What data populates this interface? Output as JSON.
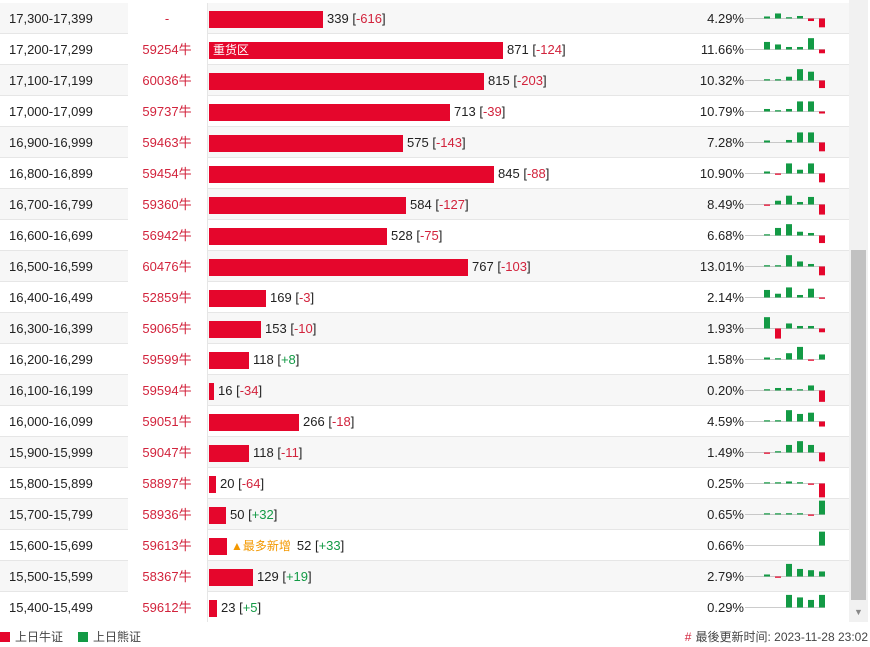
{
  "colors": {
    "bull": "#e5062c",
    "bear": "#139a45",
    "text_red": "#d2233c",
    "new_tag": "#f39800"
  },
  "rows": [
    {
      "range": "17,300-17,399",
      "bull": "-",
      "bar_value": 339,
      "change": "-616",
      "change_sign": "neg",
      "tag": "",
      "pct": "4.29%",
      "spark": [
        0.0,
        0.08,
        0.2,
        0.05,
        0.1,
        -0.1,
        -0.35
      ]
    },
    {
      "range": "17,200-17,299",
      "bull": "59254牛",
      "bar_value": 871,
      "bar_label": "重货区",
      "change": "-124",
      "change_sign": "neg",
      "tag": "",
      "pct": "11.66%",
      "spark": [
        0.0,
        0.3,
        0.2,
        0.1,
        0.1,
        0.45,
        -0.15
      ]
    },
    {
      "range": "17,100-17,199",
      "bull": "60036牛",
      "bar_value": 815,
      "change": "-203",
      "change_sign": "neg",
      "tag": "",
      "pct": "10.32%",
      "spark": [
        0.0,
        0.05,
        0.05,
        0.15,
        0.45,
        0.35,
        -0.3
      ]
    },
    {
      "range": "17,000-17,099",
      "bull": "59737牛",
      "bar_value": 713,
      "change": "-39",
      "change_sign": "neg",
      "tag": "",
      "pct": "10.79%",
      "spark": [
        0.0,
        0.1,
        0.05,
        0.1,
        0.4,
        0.4,
        -0.08
      ]
    },
    {
      "range": "16,900-16,999",
      "bull": "59463牛",
      "bar_value": 575,
      "change": "-143",
      "change_sign": "neg",
      "tag": "",
      "pct": "7.28%",
      "spark": [
        0.0,
        0.08,
        0.0,
        0.1,
        0.4,
        0.4,
        -0.35
      ]
    },
    {
      "range": "16,800-16,899",
      "bull": "59454牛",
      "bar_value": 845,
      "change": "-88",
      "change_sign": "neg",
      "tag": "",
      "pct": "10.90%",
      "spark": [
        0.0,
        0.08,
        -0.05,
        0.4,
        0.15,
        0.4,
        -0.35
      ]
    },
    {
      "range": "16,700-16,799",
      "bull": "59360牛",
      "bar_value": 584,
      "change": "-127",
      "change_sign": "neg",
      "tag": "",
      "pct": "8.49%",
      "spark": [
        0.0,
        -0.05,
        0.15,
        0.35,
        0.1,
        0.3,
        -0.4
      ]
    },
    {
      "range": "16,600-16,699",
      "bull": "56942牛",
      "bar_value": 528,
      "change": "-75",
      "change_sign": "neg",
      "tag": "",
      "pct": "6.68%",
      "spark": [
        0.0,
        0.03,
        0.3,
        0.45,
        0.15,
        0.1,
        -0.3
      ]
    },
    {
      "range": "16,500-16,599",
      "bull": "60476牛",
      "bar_value": 767,
      "change": "-103",
      "change_sign": "neg",
      "tag": "",
      "pct": "13.01%",
      "spark": [
        0.0,
        0.05,
        0.05,
        0.45,
        0.2,
        0.1,
        -0.35
      ]
    },
    {
      "range": "16,400-16,499",
      "bull": "52859牛",
      "bar_value": 169,
      "change": "-3",
      "change_sign": "neg",
      "tag": "",
      "pct": "2.14%",
      "spark": [
        0.0,
        0.3,
        0.15,
        0.4,
        0.1,
        0.35,
        -0.05
      ]
    },
    {
      "range": "16,300-16,399",
      "bull": "59065牛",
      "bar_value": 153,
      "change": "-10",
      "change_sign": "neg",
      "tag": "",
      "pct": "1.93%",
      "spark": [
        0.0,
        0.45,
        -0.4,
        0.2,
        0.1,
        0.1,
        -0.15
      ]
    },
    {
      "range": "16,200-16,299",
      "bull": "59599牛",
      "bar_value": 118,
      "change": "+8",
      "change_sign": "pos",
      "tag": "",
      "pct": "1.58%",
      "spark": [
        0.0,
        0.08,
        0.05,
        0.25,
        0.5,
        -0.05,
        0.2
      ]
    },
    {
      "range": "16,100-16,199",
      "bull": "59594牛",
      "bar_value": 16,
      "change": "-34",
      "change_sign": "neg",
      "tag": "",
      "pct": "0.20%",
      "spark": [
        0.0,
        0.05,
        0.1,
        0.1,
        0.05,
        0.2,
        -0.45
      ]
    },
    {
      "range": "16,000-16,099",
      "bull": "59051牛",
      "bar_value": 266,
      "change": "-18",
      "change_sign": "neg",
      "tag": "",
      "pct": "4.59%",
      "spark": [
        0.0,
        0.03,
        0.05,
        0.45,
        0.3,
        0.35,
        -0.2
      ]
    },
    {
      "range": "15,900-15,999",
      "bull": "59047牛",
      "bar_value": 118,
      "change": "-11",
      "change_sign": "neg",
      "tag": "",
      "pct": "1.49%",
      "spark": [
        0.0,
        -0.05,
        0.05,
        0.3,
        0.45,
        0.3,
        -0.35
      ]
    },
    {
      "range": "15,800-15,899",
      "bull": "58897牛",
      "bar_value": 20,
      "change": "-64",
      "change_sign": "neg",
      "tag": "",
      "pct": "0.25%",
      "spark": [
        0.0,
        0.02,
        0.02,
        0.08,
        0.05,
        -0.05,
        -0.55
      ]
    },
    {
      "range": "15,700-15,799",
      "bull": "58936牛",
      "bar_value": 50,
      "change": "+32",
      "change_sign": "pos",
      "tag": "",
      "pct": "0.65%",
      "spark": [
        0.0,
        0.02,
        0.02,
        0.05,
        0.05,
        -0.05,
        0.55
      ]
    },
    {
      "range": "15,600-15,699",
      "bull": "59613牛",
      "bar_value": 52,
      "change": "+33",
      "change_sign": "pos",
      "tag": "▲最多新增",
      "pct": "0.66%",
      "spark": [
        0.0,
        0.0,
        0.0,
        0.0,
        0.0,
        0.0,
        0.55
      ]
    },
    {
      "range": "15,500-15,599",
      "bull": "58367牛",
      "bar_value": 129,
      "change": "+19",
      "change_sign": "pos",
      "tag": "",
      "pct": "2.79%",
      "spark": [
        0.0,
        0.08,
        -0.05,
        0.5,
        0.3,
        0.25,
        0.2
      ]
    },
    {
      "range": "15,400-15,499",
      "bull": "59612牛",
      "bar_value": 23,
      "change": "+5",
      "change_sign": "pos",
      "tag": "",
      "pct": "0.29%",
      "spark": [
        0.0,
        0.0,
        0.0,
        0.5,
        0.4,
        0.3,
        0.5
      ]
    }
  ],
  "footer": {
    "legend_bull": "上日牛证",
    "legend_bear": "上日熊证",
    "updated_hash": "#",
    "updated_label": "最後更新时间:",
    "updated_time": "2023-11-28 23:02"
  }
}
